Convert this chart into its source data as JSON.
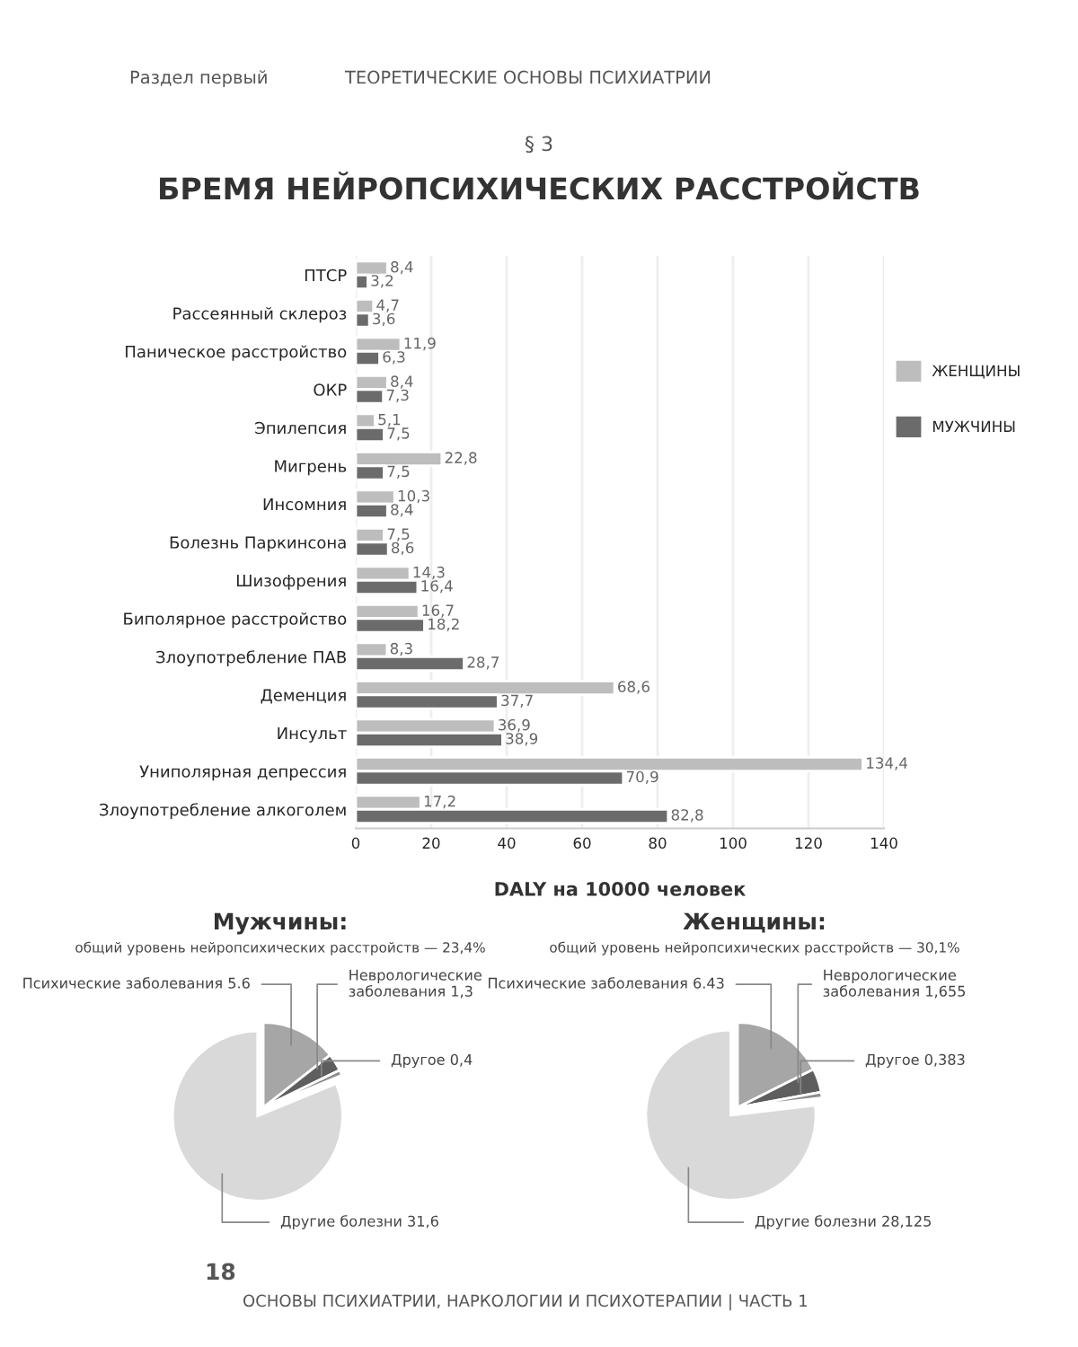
{
  "chart_data": [
    {
      "type": "bar",
      "orientation": "horizontal",
      "title": "БРЕМЯ НЕЙРОПСИХИЧЕСКИХ РАССТРОЙСТВ",
      "xlabel": "DALY на 10000 человек",
      "categories": [
        "ПТСР",
        "Рассеянный склероз",
        "Паническое расстройство",
        "ОКР",
        "Эпилепсия",
        "Мигрень",
        "Инсомния",
        "Болезнь Паркинсона",
        "Шизофрения",
        "Биполярное расстройство",
        "Злоупотребление ПАВ",
        "Деменция",
        "Инсульт",
        "Униполярная депрессия",
        "Злоупотребление алкоголем"
      ],
      "series": [
        {
          "name": "ЖЕНЩИНЫ",
          "color": "#bdbdbd",
          "values": [
            8.4,
            4.7,
            11.9,
            8.4,
            5.1,
            22.8,
            10.3,
            7.5,
            14.3,
            16.7,
            8.3,
            68.6,
            36.9,
            134.4,
            17.2
          ],
          "value_labels": [
            "8,4",
            "4,7",
            "11,9",
            "8,4",
            "5,1",
            "22,8",
            "10,3",
            "7,5",
            "14,3",
            "16,7",
            "8,3",
            "68,6",
            "36,9",
            "134,4",
            "17,2"
          ]
        },
        {
          "name": "МУЖЧИНЫ",
          "color": "#6b6b6b",
          "values": [
            3.2,
            3.6,
            6.3,
            7.3,
            7.5,
            7.5,
            8.4,
            8.6,
            16.4,
            18.2,
            28.7,
            37.7,
            38.9,
            70.9,
            82.8
          ],
          "value_labels": [
            "3,2",
            "3,6",
            "6,3",
            "7,3",
            "7,5",
            "7,5",
            "8,4",
            "8,6",
            "16,4",
            "18,2",
            "28,7",
            "37,7",
            "38,9",
            "70,9",
            "82,8"
          ]
        }
      ],
      "xlim": [
        0,
        140
      ],
      "xticks": [
        0,
        20,
        40,
        60,
        80,
        100,
        120,
        140
      ],
      "grid": "x",
      "legend": "right",
      "annotations": [
        "Раздел первый",
        "ТЕОРЕТИЧЕСКИЕ ОСНОВЫ ПСИХИАТРИИ",
        "§ 3",
        "18",
        "ОСНОВЫ ПСИХИАТРИИ, НАРКОЛОГИИ И ПСИХОТЕРАПИИ | ЧАСТЬ 1"
      ]
    },
    {
      "type": "pie",
      "title": "Мужчины:",
      "subtitle": "общий уровень нейропсихических расстройств — 23,4%",
      "categories": [
        "Психические заболевания",
        "Неврологические\nзаболевания",
        "Другое",
        "Другие болезни"
      ],
      "values": [
        5.6,
        1.3,
        0.4,
        31.6
      ],
      "value_labels": [
        "5.6",
        "1,3",
        "0,4",
        "31,6"
      ],
      "colors": [
        "#a6a6a6",
        "#5e5e5e",
        "#8c8c8c",
        "#d9d9d9"
      ]
    },
    {
      "type": "pie",
      "title": "Женщины:",
      "subtitle": "общий уровень нейропсихических расстройств — 30,1%",
      "categories": [
        "Психические заболевания",
        "Неврологические\nзаболевания",
        "Другое",
        "Другие болезни"
      ],
      "values": [
        6.43,
        1.655,
        0.383,
        28.125
      ],
      "value_labels": [
        "6.43",
        "1,655",
        "0,383",
        "28,125"
      ],
      "colors": [
        "#a6a6a6",
        "#5e5e5e",
        "#8c8c8c",
        "#d9d9d9"
      ]
    }
  ]
}
